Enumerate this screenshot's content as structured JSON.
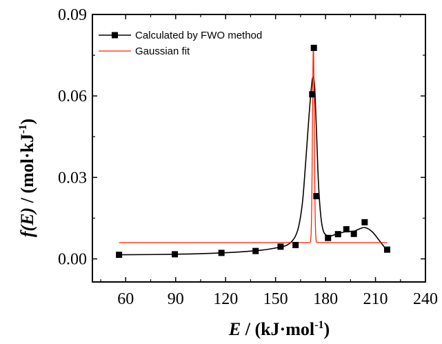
{
  "chart_data": {
    "type": "scatter",
    "xlabel": "E / (kJ·mol⁻¹)",
    "ylabel": "f(E) / (mol·kJ⁻¹)",
    "xlim": [
      40,
      240
    ],
    "ylim": [
      -0.0085,
      0.09
    ],
    "x_ticks": [
      60,
      90,
      120,
      150,
      180,
      210,
      240
    ],
    "x_tick_labels": [
      "60",
      "90",
      "120",
      "150",
      "180",
      "210",
      "240"
    ],
    "y_ticks": [
      0.0,
      0.03,
      0.06,
      0.09
    ],
    "y_tick_labels": [
      "0.00",
      "0.03",
      "0.06",
      "0.09"
    ],
    "grid": false,
    "legend_position": "top-left",
    "series": [
      {
        "name": "Calculated by FWO method",
        "style": "line+square-markers",
        "color": "#000000",
        "points": [
          [
            56,
            0.0015
          ],
          [
            89.5,
            0.0017
          ],
          [
            117.5,
            0.0022
          ],
          [
            138,
            0.0029
          ],
          [
            153,
            0.0045
          ],
          [
            162,
            0.0051
          ],
          [
            172,
            0.0606
          ],
          [
            173,
            0.0777
          ],
          [
            174.5,
            0.0231
          ],
          [
            181.5,
            0.0077
          ],
          [
            187.5,
            0.0091
          ],
          [
            192.5,
            0.0109
          ],
          [
            197,
            0.0092
          ],
          [
            203.5,
            0.0135
          ],
          [
            217,
            0.0034
          ]
        ],
        "curve": [
          [
            56,
            0.0015
          ],
          [
            90,
            0.0017
          ],
          [
            118,
            0.0022
          ],
          [
            138,
            0.003
          ],
          [
            150,
            0.004
          ],
          [
            158,
            0.0055
          ],
          [
            163,
            0.01
          ],
          [
            166,
            0.02
          ],
          [
            168,
            0.035
          ],
          [
            170,
            0.052
          ],
          [
            171.5,
            0.063
          ],
          [
            172.5,
            0.067
          ],
          [
            173.5,
            0.063
          ],
          [
            174.5,
            0.048
          ],
          [
            176,
            0.025
          ],
          [
            178,
            0.012
          ],
          [
            181,
            0.0085
          ],
          [
            186,
            0.009
          ],
          [
            192,
            0.01
          ],
          [
            197,
            0.0102
          ],
          [
            201,
            0.0112
          ],
          [
            204,
            0.0115
          ],
          [
            208,
            0.01
          ],
          [
            212,
            0.007
          ],
          [
            217,
            0.003
          ]
        ]
      },
      {
        "name": "Gaussian fit",
        "style": "line",
        "color": "#ff2200",
        "curve_params": {
          "baseline": 0.006,
          "amplitude": 0.072,
          "center": 172.7,
          "sigma": 0.55,
          "x_start": 56,
          "x_end": 217
        }
      }
    ]
  }
}
